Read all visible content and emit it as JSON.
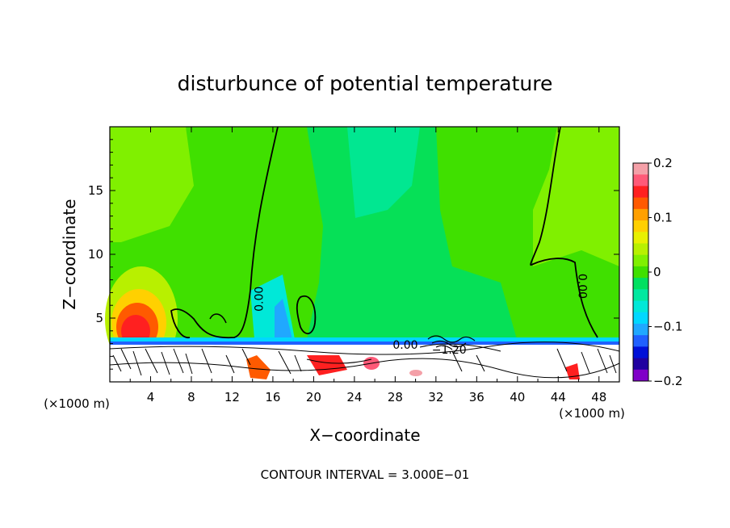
{
  "chart_data": {
    "type": "heatmap",
    "title": "disturbunce of potential temperature",
    "xlabel": "X−coordinate",
    "ylabel": "Z−coordinate",
    "x_unit": "(×1000 m)",
    "x_unit_right": "(×1000 m)",
    "footer": "CONTOUR INTERVAL = 3.000E−01",
    "xlim": [
      0,
      50
    ],
    "ylim": [
      0,
      20
    ],
    "x_ticks": [
      4,
      8,
      12,
      16,
      20,
      24,
      28,
      32,
      36,
      40,
      44,
      48
    ],
    "x_tick_labels": [
      "4",
      "8",
      "12",
      "16",
      "20",
      "24",
      "28",
      "32",
      "36",
      "40",
      "44",
      "48"
    ],
    "y_ticks": [
      5,
      10,
      15
    ],
    "y_tick_labels": [
      "5",
      "10",
      "15"
    ],
    "colorbar": {
      "range": [
        -0.2,
        0.2
      ],
      "tick_values": [
        0.2,
        0.1,
        0,
        -0.1,
        -0.2
      ],
      "tick_labels": [
        "0.2",
        "0.1",
        "0",
        "−0.1",
        "−0.2"
      ],
      "colors": [
        "#f4a0a8",
        "#ff5a78",
        "#ff2020",
        "#ff5a00",
        "#ffa000",
        "#ffd000",
        "#e8f000",
        "#b8f000",
        "#80f000",
        "#40e000",
        "#00e060",
        "#00e8a0",
        "#00e8d8",
        "#00d8ff",
        "#20a8ff",
        "#2060ff",
        "#0010d8",
        "#2000a0",
        "#8000c8"
      ]
    },
    "contour_labels": [
      {
        "text": "0.00",
        "x": 15,
        "y": 6.5,
        "rotate": -90
      },
      {
        "text": "0.00",
        "x": 46,
        "y": 7.5,
        "rotate": 90
      },
      {
        "text": "0.00",
        "x": 29,
        "y": 2.6,
        "rotate": 0
      },
      {
        "text": "−1.20",
        "x": 33.3,
        "y": 2.2,
        "rotate": 0
      }
    ]
  }
}
